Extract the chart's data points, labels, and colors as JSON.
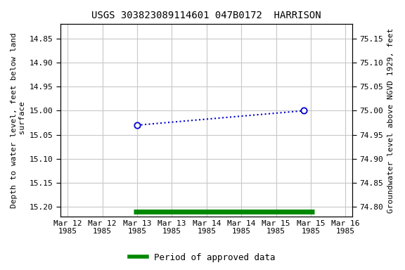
{
  "title": "USGS 303823089114601 047B0172  HARRISON",
  "ylabel_left": "Depth to water level, feet below land\n surface",
  "ylabel_right": "Groundwater level above NGVD 1929, feet",
  "ylim_left": [
    15.22,
    14.82
  ],
  "ylim_right": [
    74.78,
    75.18
  ],
  "yticks_left": [
    14.85,
    14.9,
    14.95,
    15.0,
    15.05,
    15.1,
    15.15,
    15.2
  ],
  "yticks_right": [
    75.15,
    75.1,
    75.05,
    75.0,
    74.95,
    74.9,
    74.85,
    74.8
  ],
  "data_x": [
    1.0,
    3.4
  ],
  "data_y": [
    15.03,
    15.0
  ],
  "green_x_start": 0.95,
  "green_x_end": 3.55,
  "green_y": 15.21,
  "x_tick_positions": [
    0,
    0.5,
    1.0,
    1.5,
    2.0,
    2.5,
    3.0,
    3.5,
    4.0
  ],
  "x_tick_labels": [
    "Mar 12\n1985",
    "Mar 12\n1985",
    "Mar 13\n1985",
    "Mar 13\n1985",
    "Mar 14\n1985",
    "Mar 14\n1985",
    "Mar 15\n1985",
    "Mar 15\n1985",
    "Mar 16\n1985"
  ],
  "xlim": [
    -0.1,
    4.1
  ],
  "background_color": "#ffffff",
  "grid_color": "#c8c8c8",
  "line_color": "#0000cc",
  "approved_color": "#008800",
  "title_fontsize": 10,
  "label_fontsize": 8,
  "tick_fontsize": 8,
  "legend_fontsize": 9
}
